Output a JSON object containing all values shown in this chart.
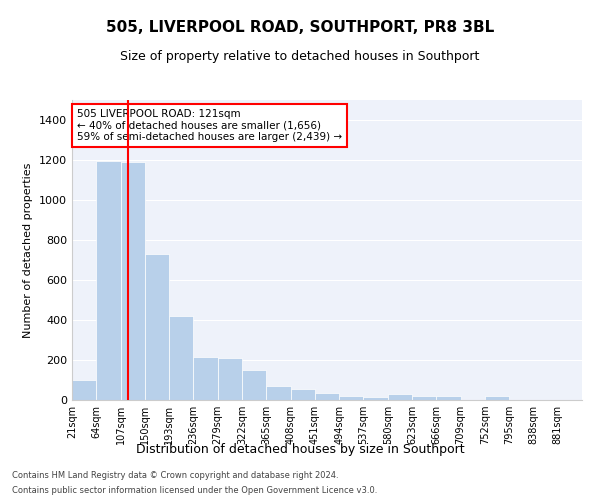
{
  "title": "505, LIVERPOOL ROAD, SOUTHPORT, PR8 3BL",
  "subtitle": "Size of property relative to detached houses in Southport",
  "xlabel": "Distribution of detached houses by size in Southport",
  "ylabel": "Number of detached properties",
  "bar_color": "#b8d0ea",
  "bar_edge_color": "#b8d0ea",
  "background_color": "#eef2fa",
  "grid_color": "#ffffff",
  "red_line_x": 121,
  "annotation_title": "505 LIVERPOOL ROAD: 121sqm",
  "annotation_line1": "← 40% of detached houses are smaller (1,656)",
  "annotation_line2": "59% of semi-detached houses are larger (2,439) →",
  "footer1": "Contains HM Land Registry data © Crown copyright and database right 2024.",
  "footer2": "Contains public sector information licensed under the Open Government Licence v3.0.",
  "bin_edges": [
    21,
    64,
    107,
    150,
    193,
    236,
    279,
    322,
    365,
    408,
    451,
    494,
    537,
    580,
    623,
    666,
    709,
    752,
    795,
    838,
    881,
    924
  ],
  "bar_heights": [
    100,
    1195,
    1190,
    730,
    420,
    215,
    210,
    148,
    70,
    55,
    35,
    20,
    17,
    28,
    18,
    18,
    0,
    22,
    0,
    0,
    0
  ],
  "ylim": [
    0,
    1500
  ],
  "yticks": [
    0,
    200,
    400,
    600,
    800,
    1000,
    1200,
    1400
  ],
  "tick_labels": [
    "21sqm",
    "64sqm",
    "107sqm",
    "150sqm",
    "193sqm",
    "236sqm",
    "279sqm",
    "322sqm",
    "365sqm",
    "408sqm",
    "451sqm",
    "494sqm",
    "537sqm",
    "580sqm",
    "623sqm",
    "666sqm",
    "709sqm",
    "752sqm",
    "795sqm",
    "838sqm",
    "881sqm"
  ]
}
